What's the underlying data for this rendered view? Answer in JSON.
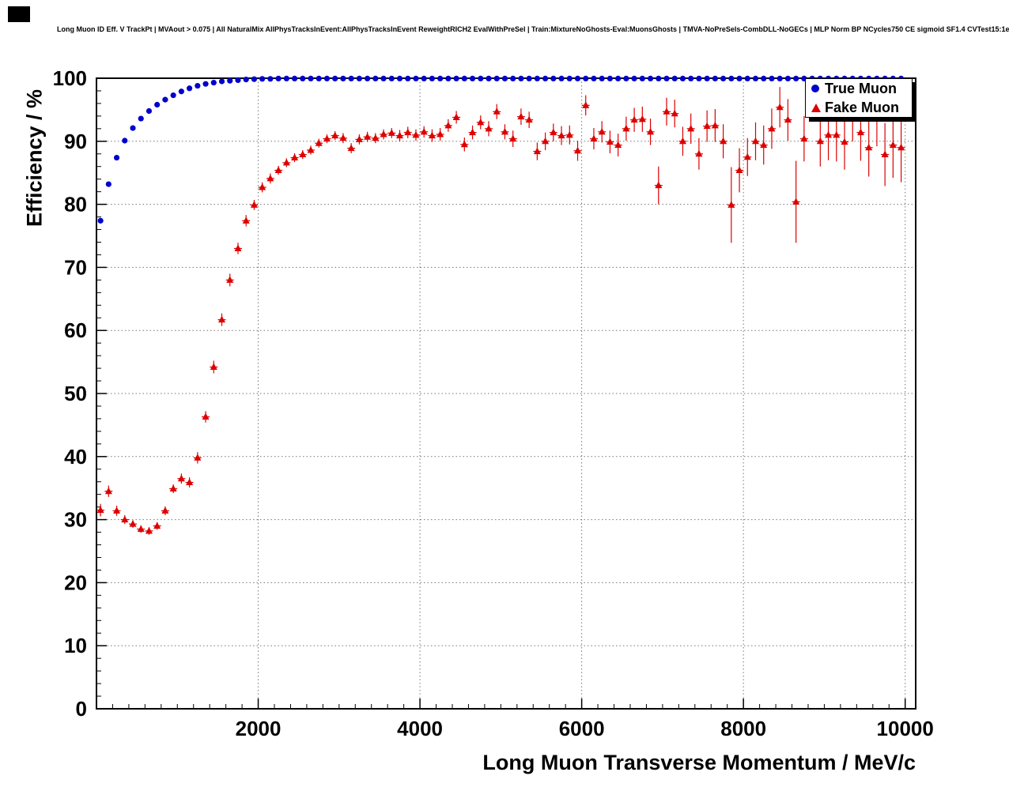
{
  "header": {
    "title": "Long Muon ID Eff. V TrackPt | MVAout > 0.075 | All NaturalMix AllPhysTracksInEvent:AllPhysTracksInEvent ReweightRICH2 EvalWithPreSel | Train:MixtureNoGhosts-Eval:MuonsGhosts | TMVA-NoPreSels-CombDLL-NoGECs | MLP Norm BP NCycles750 CE sigmoid SF1.4 CVTest15:1e-16 !UseReg"
  },
  "chart_data": {
    "type": "scatter",
    "title": "Long Muon ID Efficiency vs Track Pt",
    "xlabel": "Long Muon Transverse Momentum / MeV/c",
    "ylabel": "Efficiency / %",
    "xlim": [
      0,
      10130
    ],
    "ylim": [
      0,
      100
    ],
    "x_ticks": [
      2000,
      4000,
      6000,
      8000,
      10000
    ],
    "y_ticks": [
      0,
      10,
      20,
      30,
      40,
      50,
      60,
      70,
      80,
      90,
      100
    ],
    "x_minor_step": 200,
    "y_minor_step": 2,
    "grid": true,
    "grid_style": "dotted",
    "legend": {
      "position": "top-right",
      "entries": [
        {
          "label": "True Muon",
          "color": "#0000cc",
          "marker": "circle"
        },
        {
          "label": "Fake Muon",
          "color": "#dd0000",
          "marker": "triangle-up"
        }
      ]
    },
    "series": [
      {
        "name": "True Muon",
        "marker": "circle",
        "color": "#0000cc",
        "points": [
          [
            50,
            77.4
          ],
          [
            150,
            83.2
          ],
          [
            250,
            87.4
          ],
          [
            350,
            90.1
          ],
          [
            450,
            92.1
          ],
          [
            550,
            93.6
          ],
          [
            650,
            94.8
          ],
          [
            750,
            95.8
          ],
          [
            850,
            96.6
          ],
          [
            950,
            97.3
          ],
          [
            1050,
            97.9
          ],
          [
            1150,
            98.4
          ],
          [
            1250,
            98.8
          ],
          [
            1350,
            99.1
          ],
          [
            1450,
            99.3
          ],
          [
            1550,
            99.5
          ],
          [
            1650,
            99.6
          ],
          [
            1750,
            99.7
          ],
          [
            1850,
            99.8
          ],
          [
            1950,
            99.85
          ],
          [
            2050,
            99.9
          ],
          [
            2150,
            99.9
          ]
        ],
        "plateau": {
          "x_start": 2250,
          "x_end": 9950,
          "step": 100,
          "value": 99.95
        }
      },
      {
        "name": "Fake Muon",
        "marker": "triangle-up",
        "color": "#dd0000",
        "points": [
          [
            50,
            31.5,
            1.0
          ],
          [
            150,
            34.5,
            0.9
          ],
          [
            250,
            31.4,
            0.8
          ],
          [
            350,
            30.0,
            0.7
          ],
          [
            450,
            29.3,
            0.6
          ],
          [
            550,
            28.5,
            0.6
          ],
          [
            650,
            28.2,
            0.6
          ],
          [
            750,
            29.0,
            0.6
          ],
          [
            850,
            31.4,
            0.7
          ],
          [
            950,
            34.9,
            0.7
          ],
          [
            1050,
            36.5,
            0.8
          ],
          [
            1150,
            35.9,
            0.8
          ],
          [
            1250,
            39.8,
            0.9
          ],
          [
            1350,
            46.3,
            0.9
          ],
          [
            1450,
            54.2,
            1.0
          ],
          [
            1550,
            61.7,
            1.0
          ],
          [
            1650,
            68.0,
            1.0
          ],
          [
            1750,
            73.0,
            0.9
          ],
          [
            1850,
            77.4,
            0.9
          ],
          [
            1950,
            79.9,
            0.8
          ],
          [
            2050,
            82.7,
            0.8
          ],
          [
            2150,
            84.1,
            0.8
          ],
          [
            2250,
            85.4,
            0.7
          ],
          [
            2350,
            86.6,
            0.7
          ],
          [
            2450,
            87.4,
            0.7
          ],
          [
            2550,
            87.9,
            0.7
          ],
          [
            2650,
            88.6,
            0.7
          ],
          [
            2750,
            89.7,
            0.7
          ],
          [
            2850,
            90.4,
            0.7
          ],
          [
            2950,
            90.9,
            0.7
          ],
          [
            3050,
            90.5,
            0.8
          ],
          [
            3150,
            88.9,
            0.8
          ],
          [
            3250,
            90.3,
            0.8
          ],
          [
            3350,
            90.7,
            0.8
          ],
          [
            3450,
            90.5,
            0.8
          ],
          [
            3550,
            91.1,
            0.8
          ],
          [
            3650,
            91.3,
            0.8
          ],
          [
            3750,
            90.9,
            0.9
          ],
          [
            3850,
            91.4,
            0.9
          ],
          [
            3950,
            91.0,
            0.9
          ],
          [
            4050,
            91.5,
            0.9
          ],
          [
            4150,
            90.9,
            1.0
          ],
          [
            4250,
            91.1,
            1.0
          ],
          [
            4350,
            92.5,
            1.0
          ],
          [
            4450,
            93.8,
            1.0
          ],
          [
            4550,
            89.5,
            1.1
          ],
          [
            4650,
            91.4,
            1.1
          ],
          [
            4750,
            93.0,
            1.1
          ],
          [
            4850,
            92.0,
            1.2
          ],
          [
            4950,
            94.7,
            1.2
          ],
          [
            5050,
            91.5,
            1.2
          ],
          [
            5150,
            90.4,
            1.3
          ],
          [
            5250,
            93.9,
            1.3
          ],
          [
            5350,
            93.4,
            1.3
          ],
          [
            5450,
            88.4,
            1.4
          ],
          [
            5550,
            90.0,
            1.4
          ],
          [
            5650,
            91.4,
            1.4
          ],
          [
            5750,
            90.9,
            1.5
          ],
          [
            5850,
            91.0,
            1.5
          ],
          [
            5950,
            88.5,
            1.6
          ],
          [
            6050,
            95.7,
            1.6
          ],
          [
            6150,
            90.4,
            1.7
          ],
          [
            6250,
            91.5,
            1.7
          ],
          [
            6350,
            89.9,
            1.8
          ],
          [
            6450,
            89.4,
            1.8
          ],
          [
            6550,
            92.0,
            1.9
          ],
          [
            6650,
            93.4,
            1.9
          ],
          [
            6750,
            93.5,
            2.0
          ],
          [
            6850,
            91.5,
            2.1
          ],
          [
            6950,
            83.0,
            3.0
          ],
          [
            7050,
            94.7,
            2.2
          ],
          [
            7150,
            94.4,
            2.2
          ],
          [
            7250,
            90.0,
            2.3
          ],
          [
            7350,
            92.0,
            2.4
          ],
          [
            7450,
            88.0,
            2.5
          ],
          [
            7550,
            92.4,
            2.5
          ],
          [
            7650,
            92.5,
            2.6
          ],
          [
            7750,
            90.0,
            2.7
          ],
          [
            7850,
            79.9,
            6.0
          ],
          [
            7950,
            85.4,
            3.5
          ],
          [
            8050,
            87.5,
            3.0
          ],
          [
            8150,
            90.0,
            3.0
          ],
          [
            8250,
            89.4,
            3.1
          ],
          [
            8350,
            92.0,
            3.2
          ],
          [
            8450,
            95.4,
            3.2
          ],
          [
            8550,
            93.4,
            3.3
          ],
          [
            8650,
            80.4,
            6.5
          ],
          [
            8750,
            90.4,
            3.6
          ],
          [
            8850,
            96.6,
            3.4
          ],
          [
            8950,
            90.0,
            4.0
          ],
          [
            9050,
            91.0,
            4.0
          ],
          [
            9150,
            91.0,
            4.2
          ],
          [
            9250,
            89.9,
            4.4
          ],
          [
            9350,
            94.4,
            4.4
          ],
          [
            9450,
            91.4,
            4.5
          ],
          [
            9550,
            89.0,
            4.6
          ],
          [
            9650,
            94.0,
            4.8
          ],
          [
            9750,
            87.9,
            5.0
          ],
          [
            9850,
            89.4,
            5.2
          ],
          [
            9950,
            89.0,
            5.5
          ]
        ]
      }
    ]
  }
}
